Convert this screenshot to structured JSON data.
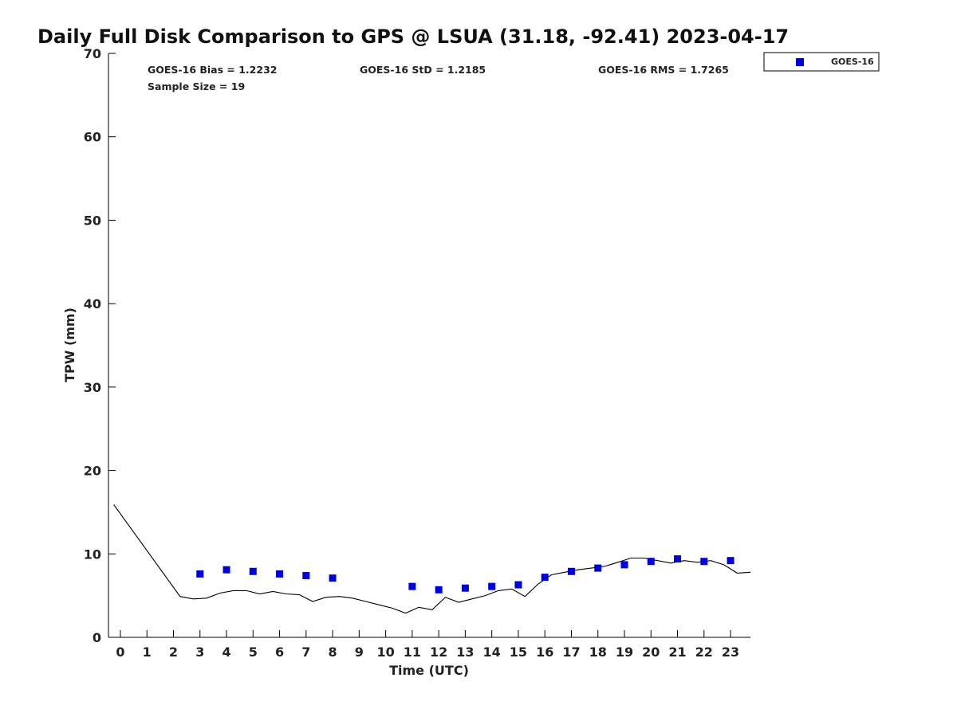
{
  "chart_data": {
    "type": "scatter",
    "title": "Daily Full Disk Comparison to GPS @ LSUA (31.18, -92.41) 2023-04-17",
    "xlabel": "Time (UTC)",
    "ylabel": "TPW (mm)",
    "xlim": [
      -0.45,
      23.75
    ],
    "ylim": [
      0,
      70
    ],
    "x_ticks": [
      0,
      1,
      2,
      3,
      4,
      5,
      6,
      7,
      8,
      9,
      10,
      11,
      12,
      13,
      14,
      15,
      16,
      17,
      18,
      19,
      20,
      21,
      22,
      23
    ],
    "x_tick_labels": [
      "0",
      "1",
      "2",
      "3",
      "4",
      "5",
      "6",
      "7",
      "8",
      "9",
      "10",
      "11",
      "12",
      "13",
      "14",
      "15",
      "16",
      "17",
      "18",
      "19",
      "20",
      "21",
      "22",
      "23"
    ],
    "y_ticks": [
      0,
      10,
      20,
      30,
      40,
      50,
      60,
      70
    ],
    "y_tick_labels": [
      "0",
      "10",
      "20",
      "30",
      "40",
      "50",
      "60",
      "70"
    ],
    "grid": false,
    "legend_position": "top-right, outside plot",
    "stats": {
      "bias": "GOES-16 Bias = 1.2232",
      "std": "GOES-16 StD = 1.2185",
      "rms": "GOES-16 RMS = 1.7265",
      "sample": "Sample Size = 19"
    },
    "series": [
      {
        "name": "GOES-16",
        "kind": "scatter",
        "marker": "square",
        "color": "#0000dd",
        "x": [
          3,
          4,
          5,
          6,
          7,
          8,
          11,
          12,
          13,
          14,
          15,
          16,
          17,
          18,
          19,
          20,
          21,
          22,
          23
        ],
        "y": [
          7.6,
          8.1,
          7.9,
          7.6,
          7.4,
          7.1,
          6.1,
          5.7,
          5.9,
          6.1,
          6.3,
          7.2,
          7.9,
          8.3,
          8.7,
          9.1,
          9.4,
          9.1,
          9.2
        ]
      },
      {
        "name": "GPS",
        "kind": "line",
        "color": "#000000",
        "x": [
          -0.25,
          2.25,
          2.75,
          3.25,
          3.75,
          4.25,
          4.75,
          5.25,
          5.75,
          6.25,
          6.75,
          7.25,
          7.75,
          8.25,
          8.75,
          9.25,
          9.75,
          10.25,
          10.75,
          11.25,
          11.75,
          12.25,
          12.75,
          13.25,
          13.75,
          14.25,
          14.75,
          15.25,
          15.75,
          16.25,
          16.75,
          17.25,
          17.75,
          18.25,
          18.75,
          19.25,
          19.75,
          20.25,
          20.75,
          21.25,
          21.75,
          22.25,
          22.75,
          23.25,
          23.75
        ],
        "y": [
          15.9,
          4.9,
          4.6,
          4.7,
          5.3,
          5.6,
          5.6,
          5.2,
          5.5,
          5.2,
          5.1,
          4.3,
          4.8,
          4.9,
          4.7,
          4.3,
          3.9,
          3.5,
          2.9,
          3.6,
          3.3,
          4.8,
          4.2,
          4.6,
          5.0,
          5.6,
          5.8,
          4.9,
          6.4,
          7.5,
          7.8,
          8.1,
          8.3,
          8.5,
          9.0,
          9.5,
          9.5,
          9.2,
          8.9,
          9.2,
          9.0,
          9.2,
          8.7,
          7.7,
          7.8
        ]
      }
    ],
    "legend": [
      {
        "label": "GOES-16",
        "color": "#0000dd",
        "marker": "square"
      }
    ]
  }
}
